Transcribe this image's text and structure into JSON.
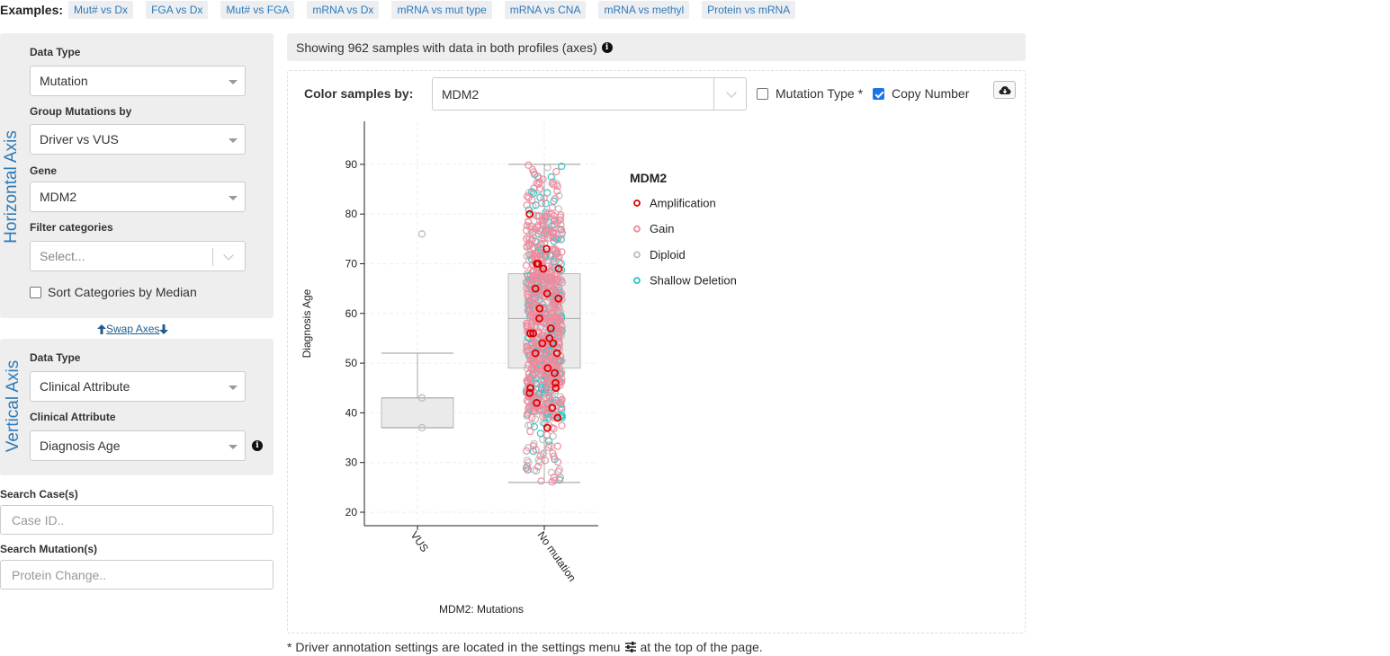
{
  "examples": {
    "label": "Examples:",
    "items": [
      "Mut# vs Dx",
      "FGA vs Dx",
      "Mut# vs FGA",
      "mRNA vs Dx",
      "mRNA vs mut type",
      "mRNA vs CNA",
      "mRNA vs methyl",
      "Protein vs mRNA"
    ]
  },
  "horizontal_axis": {
    "title": "Horizontal Axis",
    "data_type_label": "Data Type",
    "data_type_value": "Mutation",
    "group_label": "Group Mutations by",
    "group_value": "Driver vs VUS",
    "gene_label": "Gene",
    "gene_value": "MDM2",
    "filter_label": "Filter categories",
    "filter_placeholder": "Select...",
    "sort_label": "Sort Categories by Median",
    "sort_checked": false
  },
  "swap_axes_label": " Swap Axes ",
  "vertical_axis": {
    "title": "Vertical Axis",
    "data_type_label": "Data Type",
    "data_type_value": "Clinical Attribute",
    "clinical_label": "Clinical Attribute",
    "clinical_value": "Diagnosis Age"
  },
  "search_cases": {
    "label": "Search Case(s)",
    "placeholder": "Case ID.."
  },
  "search_mutations": {
    "label": "Search Mutation(s)",
    "placeholder": "Protein Change.."
  },
  "banner_text": "Showing 962 samples with data in both profiles (axes)",
  "color_by": {
    "label": "Color samples by:",
    "value": "MDM2",
    "mutation_type_label": "Mutation Type *",
    "mutation_type_checked": false,
    "copy_number_label": "Copy Number",
    "copy_number_checked": true
  },
  "footnote": {
    "before": "* Driver annotation settings are located in the settings menu",
    "after": " at the top of the page."
  },
  "icons": {
    "download": "cloud-download-icon",
    "info": "info-circle-icon",
    "settings": "sliders-icon",
    "swap_up": "arrow-up-icon",
    "swap_down": "arrow-down-icon"
  },
  "colors": {
    "accent": "#2e7ab8",
    "amplification": "#e00000",
    "gain": "#f08a9d",
    "diploid": "#bdbdbd",
    "shallow_deletion": "#2ec4c4"
  },
  "chart_data": {
    "type": "box",
    "xlabel": "MDM2: Mutations",
    "ylabel": "Diagnosis Age",
    "categories": [
      "VUS",
      "No mutation"
    ],
    "ylim": [
      17,
      98
    ],
    "yticks": [
      20,
      30,
      40,
      50,
      60,
      70,
      80,
      90
    ],
    "grid": true,
    "legend": {
      "title": "MDM2",
      "placement": "right",
      "entries": [
        {
          "name": "Amplification",
          "color": "#e00000"
        },
        {
          "name": "Gain",
          "color": "#f08a9d"
        },
        {
          "name": "Diploid",
          "color": "#bdbdbd"
        },
        {
          "name": "Shallow Deletion",
          "color": "#2ec4c4"
        }
      ]
    },
    "boxes": [
      {
        "category": "VUS",
        "min": 37,
        "q1": 37,
        "median": 43,
        "q3": 43,
        "max": 52
      },
      {
        "category": "No mutation",
        "min": 26,
        "q1": 49,
        "median": 59,
        "q3": 68,
        "max": 90
      }
    ],
    "points": {
      "VUS": [
        {
          "y": 76,
          "cna": "Diploid"
        },
        {
          "y": 43,
          "cna": "Diploid"
        },
        {
          "y": 37,
          "cna": "Diploid"
        }
      ],
      "No mutation_amplification_ages": [
        80,
        73,
        70,
        70,
        69,
        69,
        65,
        64,
        63,
        61,
        59,
        57,
        56,
        56,
        55,
        54,
        54,
        52,
        52,
        49,
        48,
        46,
        45,
        45,
        44,
        42,
        41,
        39,
        37
      ],
      "No mutation_total_samples": 959
    }
  }
}
